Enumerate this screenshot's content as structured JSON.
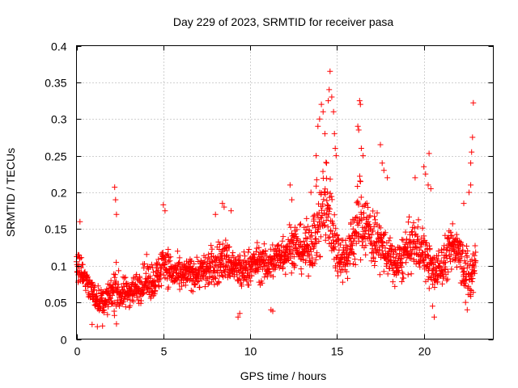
{
  "chart_data": {
    "type": "scatter",
    "title": "Day 229 of 2023, SRMTID for receiver pasa",
    "xlabel": "GPS time / hours",
    "ylabel": "SRMTID / TECUs",
    "xlim": [
      0,
      24
    ],
    "ylim": [
      0,
      0.4
    ],
    "xticks": [
      0,
      5,
      10,
      15,
      20
    ],
    "xtick_labels": [
      "0",
      "5",
      "10",
      "15",
      "20"
    ],
    "yticks": [
      0,
      0.05,
      0.1,
      0.15,
      0.2,
      0.25,
      0.3,
      0.35,
      0.4
    ],
    "ytick_labels": [
      "0",
      "0.05",
      "0.1",
      "0.15",
      "0.2",
      "0.25",
      "0.3",
      "0.35",
      "0.4"
    ],
    "grid": true,
    "marker": "+",
    "marker_color": "#ff0000",
    "profile": {
      "x": [
        0,
        0.3,
        0.6,
        1.0,
        1.5,
        2.0,
        2.2,
        2.5,
        3.0,
        3.5,
        4.0,
        4.5,
        4.8,
        5.0,
        5.2,
        5.5,
        6.0,
        6.5,
        7.0,
        7.5,
        8.0,
        8.5,
        9.0,
        9.5,
        10.0,
        10.5,
        11.0,
        11.5,
        12.0,
        12.5,
        13.0,
        13.5,
        14.0,
        14.3,
        14.6,
        15.0,
        15.5,
        16.0,
        16.3,
        16.8,
        17.0,
        17.5,
        18.0,
        18.5,
        19.0,
        19.5,
        20.0,
        20.3,
        20.6,
        21.0,
        21.5,
        22.0,
        22.3,
        22.7,
        23.0
      ],
      "y": [
        0.1,
        0.09,
        0.08,
        0.06,
        0.05,
        0.06,
        0.07,
        0.06,
        0.065,
        0.07,
        0.08,
        0.08,
        0.09,
        0.11,
        0.1,
        0.09,
        0.085,
        0.09,
        0.09,
        0.095,
        0.1,
        0.11,
        0.1,
        0.09,
        0.1,
        0.105,
        0.1,
        0.11,
        0.12,
        0.13,
        0.12,
        0.13,
        0.16,
        0.18,
        0.17,
        0.12,
        0.11,
        0.14,
        0.17,
        0.15,
        0.14,
        0.13,
        0.11,
        0.1,
        0.12,
        0.13,
        0.12,
        0.1,
        0.09,
        0.1,
        0.12,
        0.13,
        0.1,
        0.08,
        0.11
      ],
      "spread": [
        0.03,
        0.025,
        0.025,
        0.02,
        0.02,
        0.025,
        0.05,
        0.025,
        0.025,
        0.025,
        0.03,
        0.03,
        0.03,
        0.035,
        0.03,
        0.03,
        0.025,
        0.025,
        0.025,
        0.03,
        0.035,
        0.035,
        0.03,
        0.03,
        0.03,
        0.03,
        0.03,
        0.03,
        0.035,
        0.04,
        0.035,
        0.045,
        0.065,
        0.08,
        0.07,
        0.04,
        0.035,
        0.055,
        0.065,
        0.05,
        0.05,
        0.04,
        0.035,
        0.035,
        0.04,
        0.04,
        0.04,
        0.035,
        0.03,
        0.035,
        0.04,
        0.04,
        0.04,
        0.05,
        0.06
      ]
    },
    "sample_interval_hours": 0.012,
    "outliers": [
      {
        "x": 2.2,
        "y": 0.207
      },
      {
        "x": 2.25,
        "y": 0.19
      },
      {
        "x": 2.3,
        "y": 0.17
      },
      {
        "x": 5.0,
        "y": 0.183
      },
      {
        "x": 5.1,
        "y": 0.175
      },
      {
        "x": 8.0,
        "y": 0.17
      },
      {
        "x": 8.4,
        "y": 0.185
      },
      {
        "x": 8.5,
        "y": 0.18
      },
      {
        "x": 8.9,
        "y": 0.175
      },
      {
        "x": 12.3,
        "y": 0.21
      },
      {
        "x": 12.4,
        "y": 0.19
      },
      {
        "x": 13.5,
        "y": 0.2
      },
      {
        "x": 13.8,
        "y": 0.25
      },
      {
        "x": 13.9,
        "y": 0.29
      },
      {
        "x": 14.0,
        "y": 0.3
      },
      {
        "x": 14.1,
        "y": 0.32
      },
      {
        "x": 14.2,
        "y": 0.31
      },
      {
        "x": 14.3,
        "y": 0.28
      },
      {
        "x": 14.5,
        "y": 0.325
      },
      {
        "x": 14.55,
        "y": 0.34
      },
      {
        "x": 14.6,
        "y": 0.365
      },
      {
        "x": 14.7,
        "y": 0.33
      },
      {
        "x": 14.8,
        "y": 0.31
      },
      {
        "x": 14.85,
        "y": 0.28
      },
      {
        "x": 14.9,
        "y": 0.26
      },
      {
        "x": 14.95,
        "y": 0.25
      },
      {
        "x": 14.4,
        "y": 0.24
      },
      {
        "x": 16.2,
        "y": 0.29
      },
      {
        "x": 16.25,
        "y": 0.285
      },
      {
        "x": 16.3,
        "y": 0.325
      },
      {
        "x": 16.35,
        "y": 0.32
      },
      {
        "x": 16.4,
        "y": 0.26
      },
      {
        "x": 16.5,
        "y": 0.25
      },
      {
        "x": 17.5,
        "y": 0.265
      },
      {
        "x": 17.6,
        "y": 0.24
      },
      {
        "x": 17.7,
        "y": 0.23
      },
      {
        "x": 17.9,
        "y": 0.22
      },
      {
        "x": 19.5,
        "y": 0.22
      },
      {
        "x": 20.0,
        "y": 0.235
      },
      {
        "x": 20.1,
        "y": 0.225
      },
      {
        "x": 20.3,
        "y": 0.253
      },
      {
        "x": 20.25,
        "y": 0.21
      },
      {
        "x": 20.4,
        "y": 0.205
      },
      {
        "x": 22.3,
        "y": 0.185
      },
      {
        "x": 22.7,
        "y": 0.24
      },
      {
        "x": 22.75,
        "y": 0.255
      },
      {
        "x": 22.8,
        "y": 0.275
      },
      {
        "x": 22.85,
        "y": 0.322
      },
      {
        "x": 22.7,
        "y": 0.21
      },
      {
        "x": 22.6,
        "y": 0.2
      },
      {
        "x": 0.2,
        "y": 0.16
      },
      {
        "x": 0.9,
        "y": 0.02
      },
      {
        "x": 1.2,
        "y": 0.017
      },
      {
        "x": 1.5,
        "y": 0.018
      },
      {
        "x": 9.3,
        "y": 0.03
      },
      {
        "x": 9.4,
        "y": 0.035
      },
      {
        "x": 11.2,
        "y": 0.04
      },
      {
        "x": 11.3,
        "y": 0.038
      },
      {
        "x": 20.5,
        "y": 0.045
      },
      {
        "x": 20.6,
        "y": 0.03
      },
      {
        "x": 22.5,
        "y": 0.04
      },
      {
        "x": 22.4,
        "y": 0.05
      }
    ]
  }
}
